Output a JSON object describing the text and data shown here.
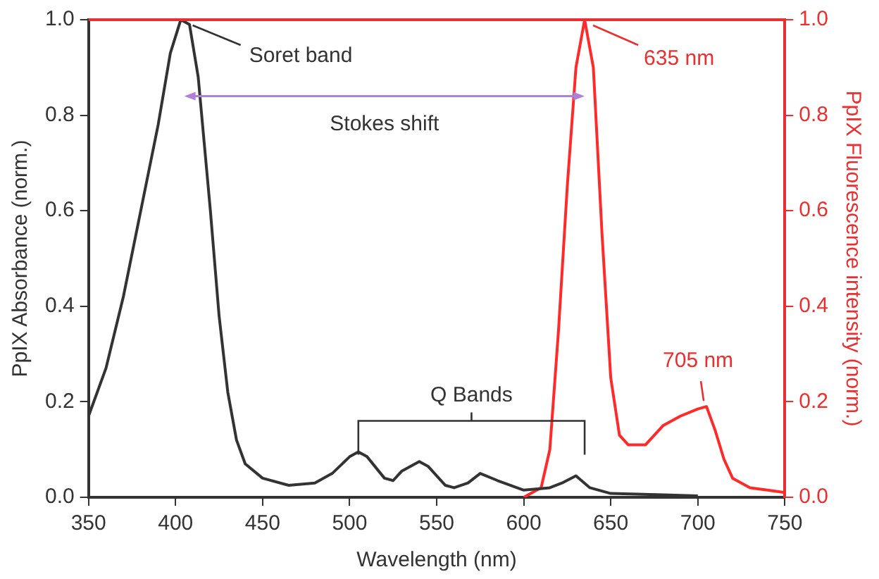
{
  "chart_data": {
    "type": "line",
    "xlabel": "Wavelength (nm)",
    "ylabel": "PpIX Absorbance (norm.)",
    "y2label": "PpIX Fluorescence intensity (norm.)",
    "series": [
      {
        "color": "#333333",
        "x": [
          350,
          360,
          370,
          380,
          390,
          397,
          403,
          408,
          413,
          420,
          425,
          430,
          435,
          440,
          450,
          465,
          480,
          490,
          500,
          505,
          510,
          520,
          525,
          530,
          540,
          545,
          555,
          560,
          568,
          575,
          585,
          600,
          615,
          622,
          630,
          638,
          650,
          680,
          700
        ],
        "values": [
          0.17,
          0.27,
          0.42,
          0.6,
          0.78,
          0.93,
          1.0,
          0.99,
          0.88,
          0.6,
          0.38,
          0.22,
          0.12,
          0.07,
          0.04,
          0.025,
          0.03,
          0.05,
          0.085,
          0.095,
          0.085,
          0.04,
          0.035,
          0.055,
          0.075,
          0.065,
          0.025,
          0.02,
          0.03,
          0.05,
          0.035,
          0.015,
          0.02,
          0.03,
          0.045,
          0.02,
          0.008,
          0.005,
          0.003
        ]
      },
      {
        "color": "#ff2a2a",
        "axis": "y2",
        "x": [
          600,
          610,
          615,
          620,
          625,
          630,
          635,
          640,
          645,
          650,
          655,
          660,
          670,
          680,
          690,
          700,
          705,
          710,
          715,
          720,
          730,
          740,
          750
        ],
        "values": [
          0,
          0.02,
          0.1,
          0.35,
          0.65,
          0.9,
          1.0,
          0.9,
          0.55,
          0.25,
          0.13,
          0.11,
          0.11,
          0.15,
          0.17,
          0.185,
          0.19,
          0.14,
          0.08,
          0.04,
          0.02,
          0.015,
          0.01
        ]
      }
    ],
    "xlim": [
      350,
      750
    ],
    "xticks": [
      350,
      400,
      450,
      500,
      550,
      600,
      650,
      700,
      750
    ],
    "ylim": [
      0,
      1
    ],
    "yticks": [
      {
        "value": 0,
        "label": "0.0"
      },
      0.2,
      0.4,
      0.6,
      0.8,
      {
        "value": 1,
        "label": "1.0"
      }
    ],
    "y2lim": [
      0,
      1
    ],
    "y2ticks": [
      {
        "value": 0,
        "label": "0.0"
      },
      0.2,
      0.4,
      0.6,
      0.8,
      {
        "value": 1,
        "label": "1.0"
      }
    ],
    "annotations": [
      {
        "text": "Soret band",
        "x": 405,
        "y": 1.0
      },
      {
        "text": "635 nm",
        "x": 635,
        "y": 1.0
      },
      "Stokes shift",
      "Q Bands",
      {
        "text": "705 nm",
        "x": 705,
        "y": 0.19
      }
    ],
    "grid": false,
    "legend": false,
    "marker": "none",
    "line_style": "solid"
  }
}
